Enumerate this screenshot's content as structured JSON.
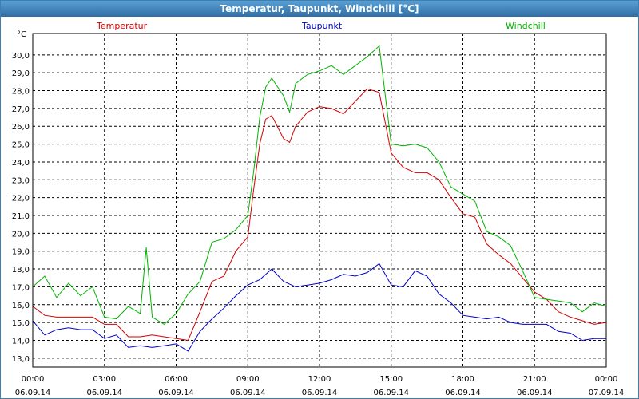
{
  "window": {
    "title": "Temperatur, Taupunkt, Windchill [°C]"
  },
  "chart_data": {
    "type": "line",
    "title": "Temperatur, Taupunkt, Windchill [°C]",
    "ylabel": "°C",
    "ylim": [
      12.5,
      31.2
    ],
    "xlim_hours": [
      0,
      24
    ],
    "y_ticks": [
      "13,0",
      "14,0",
      "15,0",
      "16,0",
      "17,0",
      "18,0",
      "19,0",
      "20,0",
      "21,0",
      "22,0",
      "23,0",
      "24,0",
      "25,0",
      "26,0",
      "27,0",
      "28,0",
      "29,0",
      "30,0"
    ],
    "x_ticks": [
      {
        "h": 0,
        "time": "00:00",
        "date": "06.09.14"
      },
      {
        "h": 3,
        "time": "03:00",
        "date": "06.09.14"
      },
      {
        "h": 6,
        "time": "06:00",
        "date": "06.09.14"
      },
      {
        "h": 9,
        "time": "09:00",
        "date": "06.09.14"
      },
      {
        "h": 12,
        "time": "12:00",
        "date": "06.09.14"
      },
      {
        "h": 15,
        "time": "15:00",
        "date": "06.09.14"
      },
      {
        "h": 18,
        "time": "18:00",
        "date": "06.09.14"
      },
      {
        "h": 21,
        "time": "21:00",
        "date": "06.09.14"
      },
      {
        "h": 24,
        "time": "00:00",
        "date": "07.09.14"
      }
    ],
    "grid": true,
    "series": [
      {
        "name": "Temperatur",
        "color": "#d40000",
        "x": [
          0,
          0.5,
          1,
          1.5,
          2,
          2.5,
          3,
          3.5,
          4,
          4.5,
          5,
          5.5,
          6,
          6.5,
          7,
          7.5,
          8,
          8.5,
          9,
          9.25,
          9.5,
          9.75,
          10,
          10.5,
          10.75,
          11,
          11.5,
          12,
          12.5,
          13,
          13.5,
          14,
          14.5,
          15,
          15.5,
          16,
          16.5,
          17,
          17.5,
          18,
          18.5,
          19,
          19.5,
          20,
          20.5,
          21,
          21.5,
          22,
          22.5,
          23,
          23.5,
          24
        ],
        "values": [
          15.9,
          15.4,
          15.3,
          15.3,
          15.3,
          15.3,
          14.9,
          14.9,
          14.2,
          14.2,
          14.3,
          14.2,
          14.1,
          14.0,
          15.6,
          17.3,
          17.6,
          19.0,
          19.8,
          22.5,
          25.0,
          26.4,
          26.6,
          25.3,
          25.1,
          26.0,
          26.8,
          27.1,
          27.0,
          26.7,
          27.4,
          28.1,
          27.9,
          24.5,
          23.7,
          23.4,
          23.4,
          23.0,
          22.0,
          21.1,
          20.9,
          19.4,
          18.8,
          18.3,
          17.5,
          16.7,
          16.3,
          15.6,
          15.3,
          15.1,
          14.9,
          15.0
        ]
      },
      {
        "name": "Taupunkt",
        "color": "#0000c8",
        "x": [
          0,
          0.5,
          1,
          1.5,
          2,
          2.5,
          3,
          3.5,
          4,
          4.5,
          5,
          5.5,
          6,
          6.5,
          7,
          7.5,
          8,
          8.5,
          9,
          9.5,
          10,
          10.5,
          11,
          11.5,
          12,
          12.5,
          13,
          13.5,
          14,
          14.5,
          15,
          15.5,
          16,
          16.5,
          17,
          17.5,
          18,
          18.5,
          19,
          19.5,
          20,
          20.5,
          21,
          21.5,
          22,
          22.5,
          23,
          23.5,
          24
        ],
        "values": [
          15.1,
          14.3,
          14.6,
          14.7,
          14.6,
          14.6,
          14.1,
          14.3,
          13.6,
          13.7,
          13.6,
          13.7,
          13.8,
          13.4,
          14.5,
          15.2,
          15.8,
          16.5,
          17.1,
          17.4,
          18.0,
          17.3,
          17.0,
          17.1,
          17.2,
          17.4,
          17.7,
          17.6,
          17.8,
          18.3,
          17.1,
          17.0,
          17.9,
          17.6,
          16.6,
          16.1,
          15.4,
          15.3,
          15.2,
          15.3,
          15.0,
          14.9,
          14.9,
          14.9,
          14.5,
          14.4,
          14.0,
          14.1,
          14.1
        ]
      },
      {
        "name": "Windchill",
        "color": "#00b400",
        "x": [
          0,
          0.5,
          1,
          1.5,
          2,
          2.5,
          3,
          3.5,
          4,
          4.5,
          4.75,
          5,
          5.5,
          6,
          6.5,
          7,
          7.5,
          8,
          8.5,
          9,
          9.25,
          9.5,
          9.75,
          10,
          10.5,
          10.75,
          11,
          11.5,
          12,
          12.5,
          13,
          13.5,
          14,
          14.5,
          15,
          15.5,
          16,
          16.5,
          17,
          17.5,
          18,
          18.5,
          19,
          19.5,
          20,
          20.5,
          21,
          21.5,
          22,
          22.5,
          23,
          23.5,
          24
        ],
        "values": [
          17.0,
          17.6,
          16.4,
          17.2,
          16.5,
          17.0,
          15.3,
          15.2,
          15.9,
          15.5,
          19.2,
          15.3,
          14.9,
          15.5,
          16.6,
          17.3,
          19.5,
          19.7,
          20.2,
          21.0,
          23.5,
          26.5,
          28.2,
          28.7,
          27.7,
          26.8,
          28.4,
          28.9,
          29.1,
          29.4,
          28.9,
          29.4,
          29.9,
          30.5,
          25.0,
          24.9,
          25.0,
          24.8,
          24.0,
          22.6,
          22.2,
          21.8,
          20.1,
          19.8,
          19.3,
          17.9,
          16.4,
          16.3,
          16.2,
          16.1,
          15.6,
          16.1,
          15.9
        ]
      }
    ]
  }
}
